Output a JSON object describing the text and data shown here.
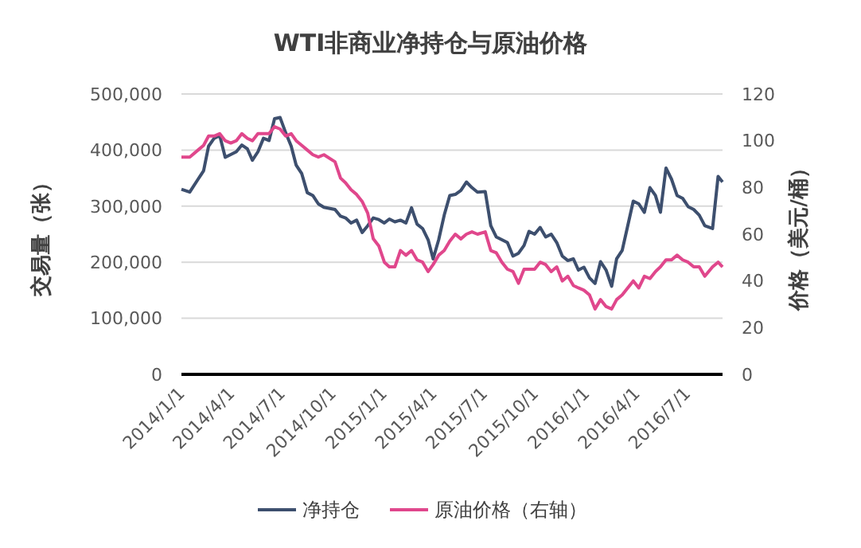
{
  "chart_data": {
    "type": "line",
    "title": "WTI非商业净持仓与原油价格",
    "ylabel": "交易量（张）",
    "y2label": "价格（美元/桶）",
    "x": [
      "2014-01-01",
      "2014-01-16",
      "2014-01-31",
      "2014-02-10",
      "2014-02-19",
      "2014-03-01",
      "2014-03-11",
      "2014-03-21",
      "2014-03-31",
      "2014-04-10",
      "2014-04-20",
      "2014-04-30",
      "2014-05-09",
      "2014-05-19",
      "2014-05-29",
      "2014-06-08",
      "2014-06-18",
      "2014-06-28",
      "2014-07-08",
      "2014-07-18",
      "2014-07-27",
      "2014-08-06",
      "2014-08-16",
      "2014-08-26",
      "2014-09-05",
      "2014-09-15",
      "2014-10-05",
      "2014-10-15",
      "2014-10-24",
      "2014-11-03",
      "2014-11-13",
      "2014-11-23",
      "2014-12-03",
      "2014-12-13",
      "2014-12-23",
      "2015-01-02",
      "2015-01-11",
      "2015-01-21",
      "2015-01-31",
      "2015-02-10",
      "2015-02-20",
      "2015-03-02",
      "2015-03-12",
      "2015-03-22",
      "2015-03-31",
      "2015-04-10",
      "2015-04-20",
      "2015-04-30",
      "2015-05-10",
      "2015-05-20",
      "2015-05-30",
      "2015-06-09",
      "2015-06-19",
      "2015-07-03",
      "2015-07-13",
      "2015-07-23",
      "2015-08-02",
      "2015-08-12",
      "2015-08-22",
      "2015-09-01",
      "2015-09-11",
      "2015-09-20",
      "2015-09-30",
      "2015-10-10",
      "2015-10-20",
      "2015-10-30",
      "2015-11-09",
      "2015-11-19",
      "2015-11-29",
      "2015-12-09",
      "2015-12-18",
      "2015-12-28",
      "2016-01-07",
      "2016-01-17",
      "2016-01-27",
      "2016-02-06",
      "2016-02-16",
      "2016-02-25",
      "2016-03-06",
      "2016-03-16",
      "2016-03-26",
      "2016-04-05",
      "2016-04-15",
      "2016-04-25",
      "2016-05-05",
      "2016-05-14",
      "2016-05-24",
      "2016-06-03",
      "2016-06-13",
      "2016-06-23",
      "2016-07-03",
      "2016-07-13",
      "2016-07-23",
      "2016-08-02",
      "2016-08-16",
      "2016-08-26",
      "2016-09-03"
    ],
    "series": [
      {
        "name": "净持仓",
        "color": "#3d4f6e",
        "values": [
          330000,
          325000,
          348000,
          363000,
          407000,
          421000,
          426000,
          387000,
          392000,
          397000,
          409000,
          402000,
          382000,
          397000,
          421000,
          417000,
          456000,
          458000,
          431000,
          407000,
          373000,
          358000,
          324000,
          319000,
          304000,
          298000,
          294000,
          282000,
          279000,
          270000,
          275000,
          253000,
          265000,
          279000,
          276000,
          270000,
          277000,
          272000,
          275000,
          270000,
          297000,
          268000,
          260000,
          240000,
          206000,
          240000,
          284000,
          319000,
          321000,
          328000,
          343000,
          333000,
          325000,
          326000,
          265000,
          245000,
          240000,
          235000,
          211000,
          216000,
          230000,
          255000,
          250000,
          262000,
          245000,
          250000,
          235000,
          211000,
          203000,
          206000,
          186000,
          191000,
          172000,
          162000,
          201000,
          186000,
          157000,
          206000,
          221000,
          265000,
          309000,
          304000,
          289000,
          333000,
          319000,
          289000,
          368000,
          348000,
          319000,
          314000,
          299000,
          294000,
          284000,
          265000,
          260000,
          353000,
          343000
        ]
      },
      {
        "name": "原油价格（右轴）",
        "color": "#e0478c",
        "axis": "y2",
        "values": [
          93,
          93,
          96,
          98,
          102,
          102,
          103,
          100,
          99,
          100,
          103,
          101,
          100,
          103,
          103,
          103,
          106,
          105,
          102,
          103,
          100,
          98,
          96,
          94,
          93,
          94,
          91,
          84,
          82,
          79,
          77,
          74,
          69,
          58,
          55,
          48,
          46,
          46,
          53,
          51,
          53,
          49,
          48,
          44,
          47,
          51,
          53,
          57,
          60,
          58,
          60,
          61,
          60,
          61,
          53,
          52,
          48,
          45,
          44,
          39,
          45,
          45,
          45,
          48,
          47,
          44,
          46,
          40,
          42,
          38,
          37,
          36,
          34,
          28,
          32,
          29,
          28,
          32,
          34,
          37,
          40,
          37,
          42,
          41,
          44,
          46,
          49,
          49,
          51,
          49,
          48,
          46,
          46,
          42,
          46,
          48,
          46
        ]
      }
    ],
    "xlim": [
      "2014-01-01",
      "2016-09-03"
    ],
    "xticks": [
      {
        "value": "2014-01-01",
        "label": "2014/1/1"
      },
      {
        "value": "2014-04-01",
        "label": "2014/4/1"
      },
      {
        "value": "2014-07-01",
        "label": "2014/7/1"
      },
      {
        "value": "2014-10-01",
        "label": "2014/10/1"
      },
      {
        "value": "2015-01-01",
        "label": "2015/1/1"
      },
      {
        "value": "2015-04-01",
        "label": "2015/4/1"
      },
      {
        "value": "2015-07-01",
        "label": "2015/7/1"
      },
      {
        "value": "2015-10-01",
        "label": "2015/10/1"
      },
      {
        "value": "2016-01-01",
        "label": "2016/1/1"
      },
      {
        "value": "2016-04-01",
        "label": "2016/4/1"
      },
      {
        "value": "2016-07-01",
        "label": "2016/7/1"
      }
    ],
    "ylim": [
      0,
      500000
    ],
    "yticks": [
      {
        "value": 0,
        "label": "0"
      },
      {
        "value": 100000,
        "label": "100,000"
      },
      {
        "value": 200000,
        "label": "200,000"
      },
      {
        "value": 300000,
        "label": "300,000"
      },
      {
        "value": 400000,
        "label": "400,000"
      },
      {
        "value": 500000,
        "label": "500,000"
      }
    ],
    "y2lim": [
      0,
      120
    ],
    "y2ticks": [
      0,
      20,
      40,
      60,
      80,
      100,
      120
    ],
    "grid": "y",
    "legend": "bottom",
    "marker": "none",
    "line_style": "solid"
  }
}
